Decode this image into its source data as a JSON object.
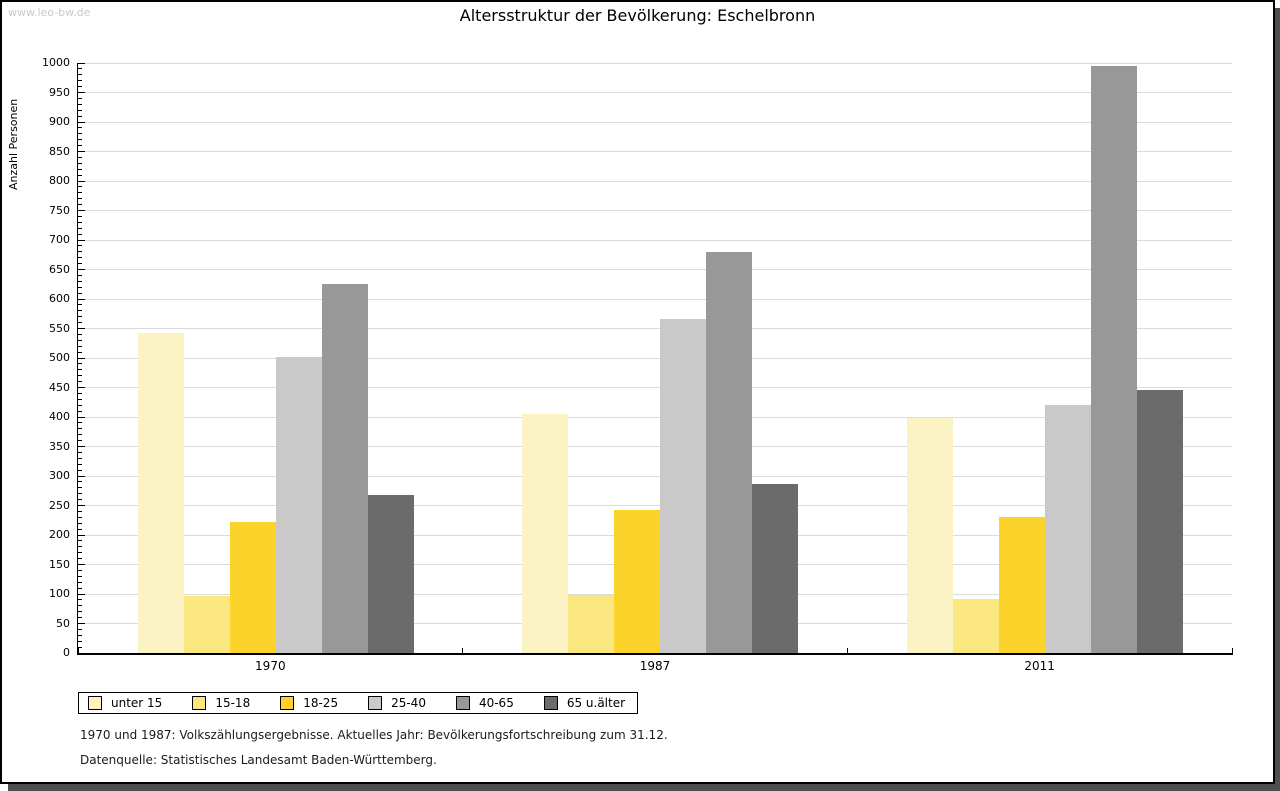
{
  "watermark": "www.leo-bw.de",
  "chart_data": {
    "type": "bar",
    "title": "Altersstruktur der Bevölkerung: Eschelbronn",
    "xlabel": "",
    "ylabel": "Anzahl Personen",
    "ylim": [
      0,
      1000
    ],
    "ytick_step": 50,
    "minor_tick_step": 10,
    "grid": true,
    "grid_color": "#dbdbdb",
    "axis_color": "#000000",
    "legend_position": "bottom-left",
    "categories": [
      "1970",
      "1987",
      "2011"
    ],
    "series": [
      {
        "name": "unter 15",
        "color": "#fcf3c5",
        "values": [
          542,
          405,
          398
        ]
      },
      {
        "name": "15-18",
        "color": "#fae780",
        "values": [
          97,
          99,
          92
        ]
      },
      {
        "name": "18-25",
        "color": "#fcd32b",
        "values": [
          222,
          242,
          230
        ]
      },
      {
        "name": "25-40",
        "color": "#c9c9c9",
        "values": [
          502,
          566,
          420
        ]
      },
      {
        "name": "40-65",
        "color": "#989898",
        "values": [
          626,
          679,
          995
        ]
      },
      {
        "name": "65 u.älter",
        "color": "#6b6b6b",
        "values": [
          267,
          287,
          445
        ]
      }
    ]
  },
  "footnotes": {
    "line1": "1970 und 1987: Volkszählungsergebnisse. Aktuelles Jahr: Bevölkerungsfortschreibung zum 31.12.",
    "line2": "Datenquelle: Statistisches Landesamt Baden-Württemberg."
  }
}
